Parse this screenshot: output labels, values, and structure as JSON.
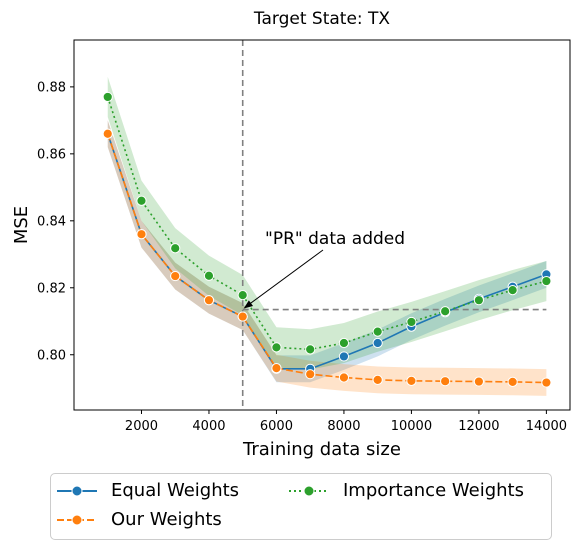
{
  "chart_data": {
    "type": "line",
    "title": "Target State: TX",
    "xlabel": "Training data size",
    "ylabel": "MSE",
    "x": [
      1000,
      2000,
      3000,
      4000,
      5000,
      6000,
      7000,
      8000,
      9000,
      10000,
      11000,
      12000,
      13000,
      14000
    ],
    "xlim": [
      0,
      14700
    ],
    "ylim": [
      0.7835,
      0.894
    ],
    "xticks": [
      2000,
      4000,
      6000,
      8000,
      10000,
      12000,
      14000
    ],
    "yticks": [
      0.8,
      0.82,
      0.84,
      0.86,
      0.88
    ],
    "grid": false,
    "legend_position": "bottom",
    "series": [
      {
        "name": "Equal Weights",
        "color": "#1f77b4",
        "style": "solid",
        "values": [
          0.866,
          0.836,
          0.8235,
          0.8163,
          0.8114,
          0.7958,
          0.7958,
          0.7995,
          0.8035,
          0.8084,
          0.8127,
          0.8167,
          0.8203,
          0.824
        ],
        "band_half_width": 0.004
      },
      {
        "name": "Our Weights",
        "color": "#ff7f0e",
        "style": "dashed",
        "values": [
          0.866,
          0.836,
          0.8235,
          0.8163,
          0.8114,
          0.796,
          0.7942,
          0.7932,
          0.7925,
          0.7922,
          0.7921,
          0.792,
          0.7919,
          0.7917
        ],
        "band_half_width": 0.004
      },
      {
        "name": "Importance Weights",
        "color": "#2ca02c",
        "style": "dotted",
        "values": [
          0.877,
          0.846,
          0.8318,
          0.8236,
          0.8178,
          0.8022,
          0.8016,
          0.8035,
          0.8069,
          0.8098,
          0.813,
          0.8163,
          0.8193,
          0.822
        ],
        "band_half_width": 0.006
      }
    ],
    "reference_lines": {
      "vertical_x": 5000,
      "horizontal_y": 0.8135,
      "horizontal_from_x": 5000,
      "horizontal_to_x": 14000
    },
    "annotation": {
      "text": "\"PR\" data added",
      "points_to_x": 5000,
      "points_to_y": 0.8135
    }
  }
}
